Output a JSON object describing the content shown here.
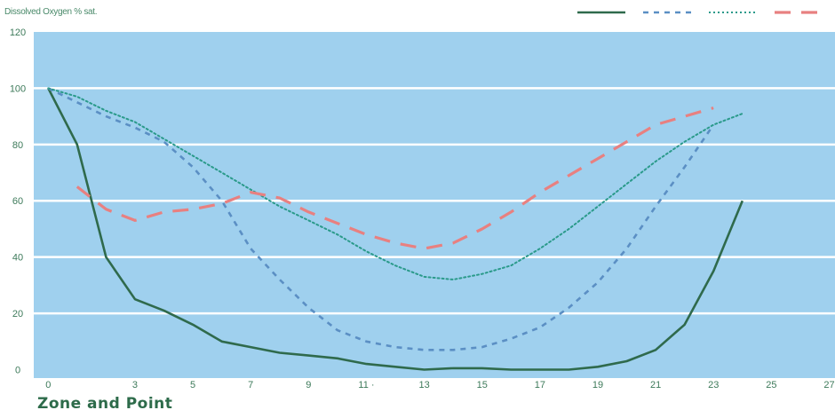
{
  "chart_data": {
    "type": "line",
    "ylabel": "Dissolved Oxygen % sat.",
    "xlabel": "Zone and Point",
    "xlim": [
      -0.5,
      27.2
    ],
    "ylim": [
      -3,
      120
    ],
    "x_ticks": [
      "0",
      "3",
      "5",
      "7",
      "9",
      "11 ·",
      "13",
      "15",
      "17",
      "19",
      "21",
      "23",
      "25",
      "27"
    ],
    "x_tick_values": [
      0,
      3,
      5,
      7,
      9,
      11,
      13,
      15,
      17,
      19,
      21,
      23,
      25,
      27
    ],
    "y_ticks": [
      0,
      20,
      40,
      60,
      80,
      100,
      120
    ],
    "grid": true,
    "legend_position": "top-right",
    "colors": {
      "plot_bg": "#9fd0ee",
      "grid": "#ffffff",
      "tick_text": "#3d7a5a"
    },
    "series": [
      {
        "style": "solid",
        "color": "#2f6a4c",
        "points": [
          [
            0,
            100
          ],
          [
            1,
            80
          ],
          [
            2,
            40
          ],
          [
            3,
            25
          ],
          [
            4,
            21
          ],
          [
            5,
            16
          ],
          [
            6,
            10
          ],
          [
            7,
            8
          ],
          [
            8,
            6
          ],
          [
            9,
            5
          ],
          [
            10,
            4
          ],
          [
            11,
            2
          ],
          [
            12,
            1
          ],
          [
            13,
            0
          ],
          [
            14,
            0.5
          ],
          [
            15,
            0.5
          ],
          [
            16,
            0
          ],
          [
            17,
            0
          ],
          [
            18,
            0
          ],
          [
            19,
            1
          ],
          [
            20,
            3
          ],
          [
            21,
            7
          ],
          [
            22,
            16
          ],
          [
            23,
            35
          ],
          [
            24,
            60
          ]
        ]
      },
      {
        "style": "dashed",
        "color": "#5b8fc4",
        "points": [
          [
            0,
            100
          ],
          [
            1,
            95
          ],
          [
            2,
            90
          ],
          [
            3,
            86
          ],
          [
            4,
            81
          ],
          [
            5,
            72
          ],
          [
            6,
            60
          ],
          [
            7,
            43
          ],
          [
            8,
            32
          ],
          [
            9,
            22
          ],
          [
            10,
            14
          ],
          [
            11,
            10
          ],
          [
            12,
            8
          ],
          [
            13,
            7
          ],
          [
            14,
            7
          ],
          [
            15,
            8
          ],
          [
            16,
            11
          ],
          [
            17,
            15
          ],
          [
            18,
            22
          ],
          [
            19,
            31
          ],
          [
            20,
            43
          ],
          [
            21,
            58
          ],
          [
            22,
            72
          ],
          [
            23,
            87
          ]
        ]
      },
      {
        "style": "dotted",
        "color": "#2a9a8a",
        "points": [
          [
            0,
            100
          ],
          [
            1,
            97
          ],
          [
            2,
            92
          ],
          [
            3,
            88
          ],
          [
            4,
            82
          ],
          [
            5,
            76
          ],
          [
            6,
            70
          ],
          [
            7,
            64
          ],
          [
            8,
            58
          ],
          [
            9,
            53
          ],
          [
            10,
            48
          ],
          [
            11,
            42
          ],
          [
            12,
            37
          ],
          [
            13,
            33
          ],
          [
            14,
            32
          ],
          [
            15,
            34
          ],
          [
            16,
            37
          ],
          [
            17,
            43
          ],
          [
            18,
            50
          ],
          [
            19,
            58
          ],
          [
            20,
            66
          ],
          [
            21,
            74
          ],
          [
            22,
            81
          ],
          [
            23,
            87
          ],
          [
            24,
            91
          ]
        ]
      },
      {
        "style": "longdash",
        "color": "#e88080",
        "points": [
          [
            1,
            65
          ],
          [
            2,
            57
          ],
          [
            3,
            53
          ],
          [
            4,
            56
          ],
          [
            5,
            57
          ],
          [
            6,
            59
          ],
          [
            7,
            63
          ],
          [
            8,
            61
          ],
          [
            9,
            56
          ],
          [
            10,
            52
          ],
          [
            11,
            48
          ],
          [
            12,
            45
          ],
          [
            13,
            43
          ],
          [
            14,
            45
          ],
          [
            15,
            50
          ],
          [
            16,
            56
          ],
          [
            17,
            63
          ],
          [
            18,
            69
          ],
          [
            19,
            75
          ],
          [
            20,
            81
          ],
          [
            21,
            87
          ],
          [
            22,
            90
          ],
          [
            23,
            93
          ]
        ]
      }
    ],
    "legend": [
      {
        "style": "solid",
        "color": "#2f6a4c"
      },
      {
        "style": "dashed",
        "color": "#5b8fc4"
      },
      {
        "style": "dotted",
        "color": "#2a9a8a"
      },
      {
        "style": "longdash",
        "color": "#e88080"
      }
    ]
  }
}
